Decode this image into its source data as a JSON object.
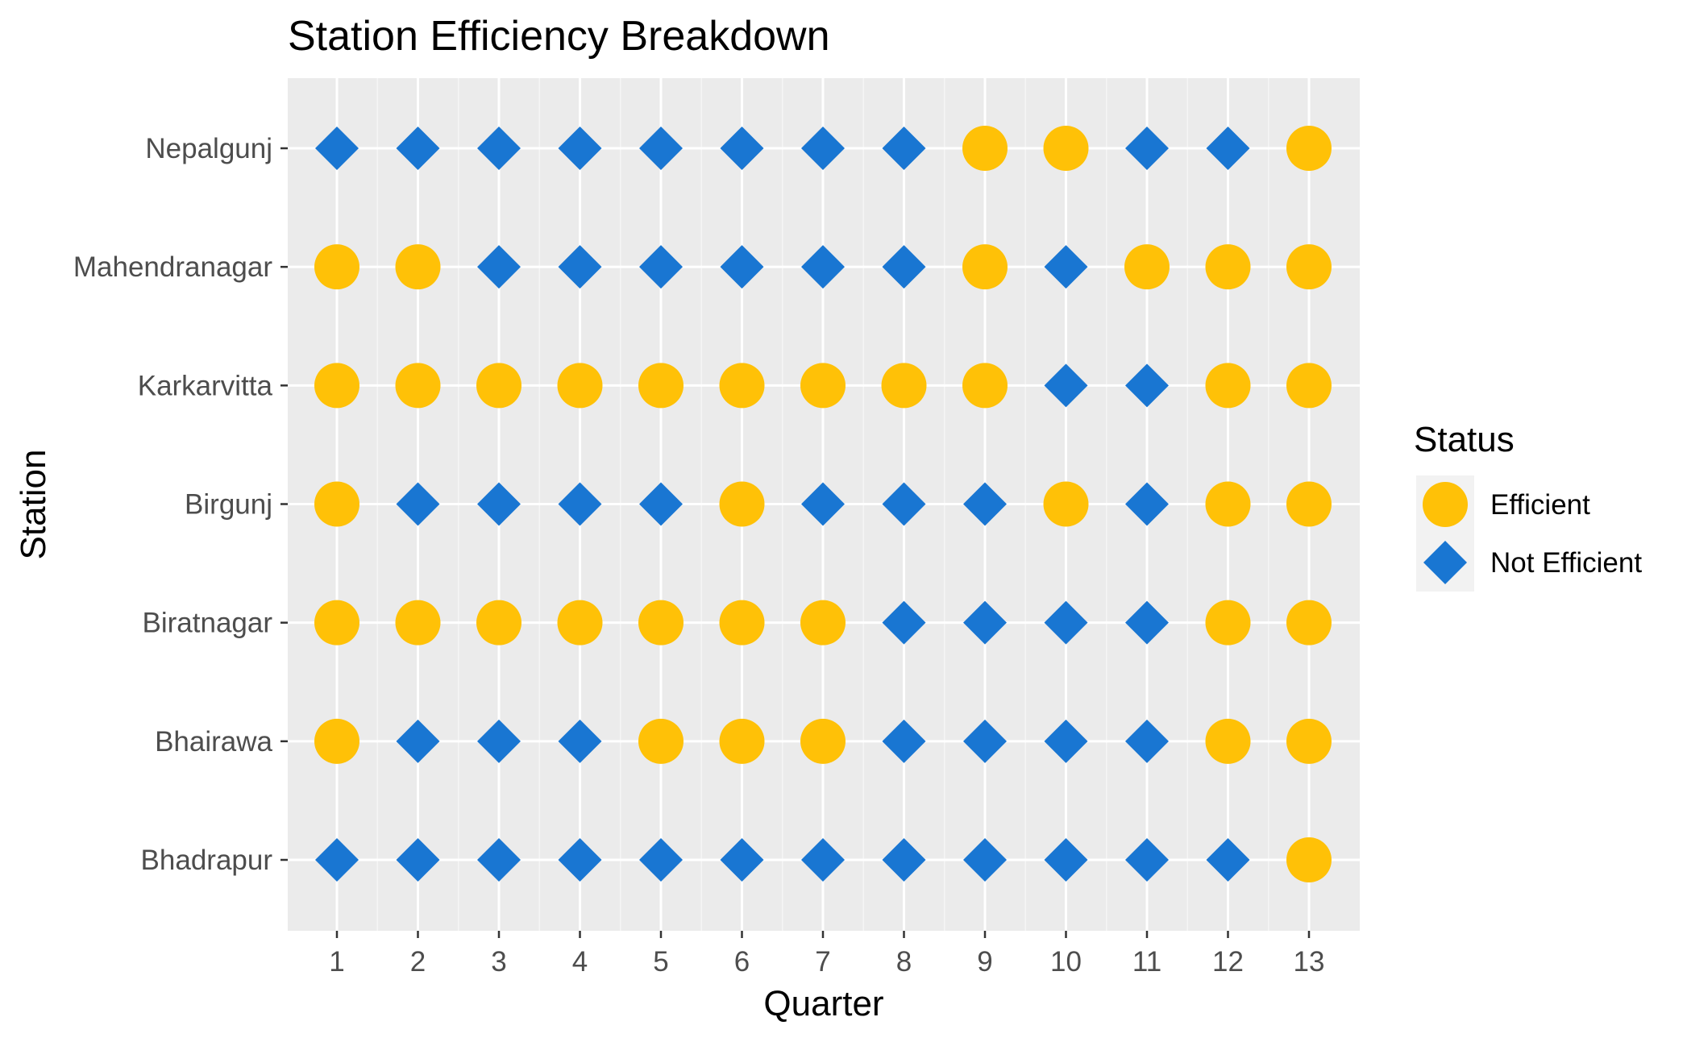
{
  "chart_data": {
    "type": "scatter",
    "title": "Station Efficiency Breakdown",
    "xlabel": "Quarter",
    "ylabel": "Station",
    "x": [
      1,
      2,
      3,
      4,
      5,
      6,
      7,
      8,
      9,
      10,
      11,
      12,
      13
    ],
    "stations": [
      "Bhadrapur",
      "Bhairawa",
      "Biratnagar",
      "Birgunj",
      "Karkarvitta",
      "Mahendranagar",
      "Nepalgunj"
    ],
    "status_matrix": {
      "Nepalgunj": [
        "N",
        "N",
        "N",
        "N",
        "N",
        "N",
        "N",
        "N",
        "E",
        "E",
        "N",
        "N",
        "E"
      ],
      "Mahendranagar": [
        "E",
        "E",
        "N",
        "N",
        "N",
        "N",
        "N",
        "N",
        "E",
        "N",
        "E",
        "E",
        "E"
      ],
      "Karkarvitta": [
        "E",
        "E",
        "E",
        "E",
        "E",
        "E",
        "E",
        "E",
        "E",
        "N",
        "N",
        "E",
        "E"
      ],
      "Birgunj": [
        "E",
        "N",
        "N",
        "N",
        "N",
        "E",
        "N",
        "N",
        "N",
        "E",
        "N",
        "E",
        "E"
      ],
      "Biratnagar": [
        "E",
        "E",
        "E",
        "E",
        "E",
        "E",
        "E",
        "N",
        "N",
        "N",
        "N",
        "E",
        "E"
      ],
      "Bhairawa": [
        "E",
        "N",
        "N",
        "N",
        "E",
        "E",
        "E",
        "N",
        "N",
        "N",
        "N",
        "E",
        "E"
      ],
      "Bhadrapur": [
        "N",
        "N",
        "N",
        "N",
        "N",
        "N",
        "N",
        "N",
        "N",
        "N",
        "N",
        "N",
        "E"
      ]
    },
    "legend": {
      "title": "Status",
      "position": "right",
      "items": [
        {
          "key": "E",
          "label": "Efficient",
          "shape": "circle",
          "color": "#FFC107"
        },
        {
          "key": "N",
          "label": "Not Efficient",
          "shape": "diamond",
          "color": "#1976D2"
        }
      ]
    },
    "grid": true,
    "panel_background": "#EBEBEB"
  }
}
